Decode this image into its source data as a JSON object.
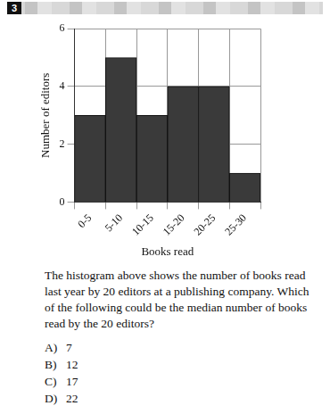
{
  "header": {
    "number": "3"
  },
  "chart_data": {
    "type": "bar",
    "x_label": "Books read",
    "y_label": "Number of editors",
    "categories": [
      "0-5",
      "5-10",
      "10-15",
      "15-20",
      "20-25",
      "25-30"
    ],
    "values": [
      3,
      5,
      3,
      4,
      4,
      1
    ],
    "color": "#3a3a3a",
    "ylim": [
      0,
      6
    ],
    "yticks": [
      0,
      2,
      4,
      6
    ],
    "grid": true
  },
  "question": {
    "text": "The histogram above shows the number of books read last year by 20 editors at a publishing company. Which of the following could be the median number of books read by the 20 editors?",
    "choices": [
      {
        "label": "A)",
        "text": "7"
      },
      {
        "label": "B)",
        "text": "12"
      },
      {
        "label": "C)",
        "text": "17"
      },
      {
        "label": "D)",
        "text": "22"
      }
    ]
  }
}
